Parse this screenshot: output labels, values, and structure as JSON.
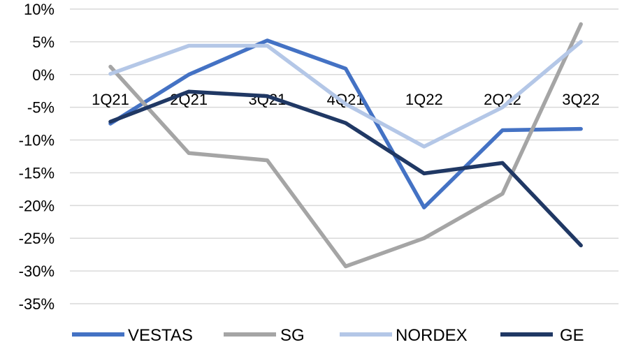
{
  "chart_data": {
    "type": "line",
    "title": "",
    "xlabel": "",
    "ylabel": "",
    "categories": [
      "1Q21",
      "2Q21",
      "3Q21",
      "4Q21",
      "1Q22",
      "2Q22",
      "3Q22"
    ],
    "ylim": [
      -35,
      10
    ],
    "yticks": [
      10,
      5,
      0,
      -5,
      -10,
      -15,
      -20,
      -25,
      -30,
      -35
    ],
    "ytick_labels": [
      "10%",
      "5%",
      "0%",
      "-5%",
      "-10%",
      "-15%",
      "-20%",
      "-25%",
      "-30%",
      "-35%"
    ],
    "grid": true,
    "legend_position": "bottom",
    "series": [
      {
        "name": "VESTAS",
        "color": "#4472c4",
        "values": [
          -7.5,
          0.0,
          5.2,
          0.9,
          -20.3,
          -8.5,
          -8.3
        ]
      },
      {
        "name": "SG",
        "color": "#a5a5a5",
        "values": [
          1.2,
          -12.0,
          -13.1,
          -29.3,
          -25.0,
          -18.2,
          7.7
        ]
      },
      {
        "name": "NORDEX",
        "color": "#b4c7e7",
        "values": [
          0.1,
          4.4,
          4.4,
          -4.5,
          -11.0,
          -5.0,
          5.0
        ]
      },
      {
        "name": "GE",
        "color": "#203864",
        "values": [
          -7.2,
          -2.6,
          -3.3,
          -7.4,
          -15.1,
          -13.5,
          -26.1
        ]
      }
    ]
  }
}
